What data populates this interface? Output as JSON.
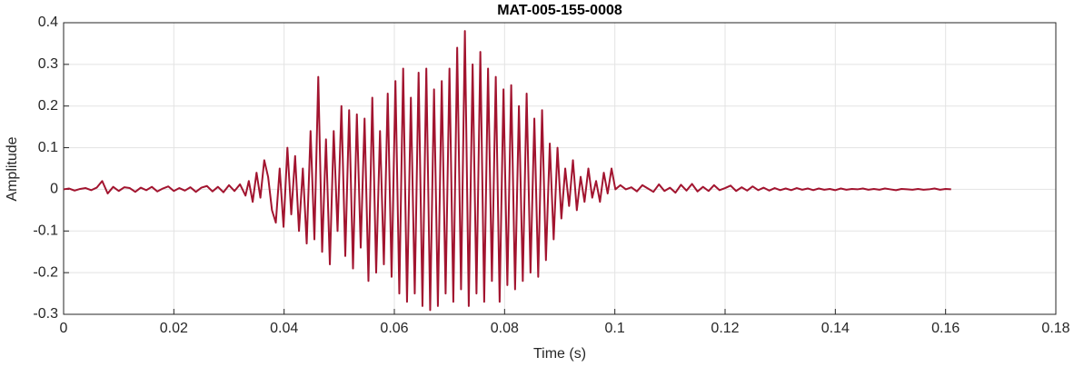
{
  "chart_data": {
    "type": "line",
    "title": "MAT-005-155-0008",
    "xlabel": "Time (s)",
    "ylabel": "Amplitude",
    "color": "#A2142F",
    "grid": true,
    "xlim": [
      0,
      0.18
    ],
    "xticks": [
      0,
      0.02,
      0.04,
      0.06,
      0.08,
      0.1,
      0.12,
      0.14,
      0.16,
      0.18
    ],
    "ylim": [
      -0.3,
      0.4
    ],
    "yticks": [
      -0.3,
      -0.2,
      -0.1,
      0,
      0.1,
      0.2,
      0.3,
      0.4
    ],
    "x": [
      0,
      0.001,
      0.002,
      0.003,
      0.004,
      0.005,
      0.006,
      0.007,
      0.008,
      0.009,
      0.01,
      0.011,
      0.012,
      0.013,
      0.014,
      0.015,
      0.016,
      0.017,
      0.018,
      0.019,
      0.02,
      0.021,
      0.022,
      0.023,
      0.024,
      0.025,
      0.026,
      0.027,
      0.028,
      0.029,
      0.03,
      0.031,
      0.032,
      0.033,
      0.0336,
      0.0343,
      0.035,
      0.0357,
      0.0364,
      0.0371,
      0.0378,
      0.0385,
      0.0392,
      0.0399,
      0.0406,
      0.0413,
      0.042,
      0.0427,
      0.0434,
      0.0441,
      0.0448,
      0.0455,
      0.0462,
      0.0469,
      0.0476,
      0.0483,
      0.049,
      0.0497,
      0.0504,
      0.0511,
      0.0518,
      0.0525,
      0.0532,
      0.0539,
      0.0546,
      0.0553,
      0.056,
      0.0567,
      0.0574,
      0.0581,
      0.0588,
      0.0595,
      0.0602,
      0.0609,
      0.0616,
      0.0623,
      0.063,
      0.0637,
      0.0644,
      0.0651,
      0.0658,
      0.0665,
      0.0672,
      0.0679,
      0.0686,
      0.0693,
      0.07,
      0.0707,
      0.0714,
      0.0721,
      0.0728,
      0.0735,
      0.0742,
      0.0749,
      0.0756,
      0.0763,
      0.077,
      0.0777,
      0.0784,
      0.0791,
      0.0798,
      0.0805,
      0.0812,
      0.0819,
      0.0826,
      0.0833,
      0.084,
      0.0847,
      0.0854,
      0.0861,
      0.0868,
      0.0875,
      0.0882,
      0.0889,
      0.0896,
      0.0903,
      0.091,
      0.0917,
      0.0924,
      0.0931,
      0.0938,
      0.0945,
      0.0952,
      0.0959,
      0.0966,
      0.0973,
      0.098,
      0.0987,
      0.0994,
      0.1001,
      0.101,
      0.102,
      0.103,
      0.104,
      0.105,
      0.106,
      0.107,
      0.108,
      0.109,
      0.11,
      0.111,
      0.112,
      0.113,
      0.114,
      0.115,
      0.116,
      0.117,
      0.118,
      0.119,
      0.12,
      0.121,
      0.122,
      0.123,
      0.124,
      0.125,
      0.126,
      0.127,
      0.128,
      0.129,
      0.13,
      0.131,
      0.132,
      0.133,
      0.134,
      0.135,
      0.136,
      0.137,
      0.138,
      0.139,
      0.14,
      0.141,
      0.142,
      0.143,
      0.144,
      0.145,
      0.146,
      0.147,
      0.148,
      0.149,
      0.15,
      0.151,
      0.152,
      0.153,
      0.154,
      0.155,
      0.156,
      0.157,
      0.158,
      0.159,
      0.16,
      0.161
    ],
    "values": [
      0,
      0.002,
      -0.003,
      0.001,
      0.003,
      -0.002,
      0.004,
      0.02,
      -0.01,
      0.006,
      -0.004,
      0.005,
      0.003,
      -0.006,
      0.004,
      -0.002,
      0.006,
      -0.005,
      0.002,
      0.007,
      -0.004,
      0.003,
      -0.003,
      0.005,
      -0.006,
      0.004,
      0.008,
      -0.005,
      0.006,
      -0.007,
      0.01,
      -0.004,
      0.012,
      -0.015,
      0.02,
      -0.03,
      0.04,
      -0.02,
      0.07,
      0.03,
      -0.05,
      -0.08,
      0.05,
      -0.09,
      0.1,
      -0.06,
      0.08,
      -0.1,
      0.05,
      -0.13,
      0.14,
      -0.12,
      0.27,
      -0.15,
      0.12,
      -0.18,
      0.14,
      -0.1,
      0.2,
      -0.16,
      0.19,
      -0.19,
      0.18,
      -0.14,
      0.17,
      -0.22,
      0.22,
      -0.2,
      0.14,
      -0.18,
      0.23,
      -0.21,
      0.26,
      -0.25,
      0.29,
      -0.27,
      0.22,
      -0.25,
      0.28,
      -0.28,
      0.29,
      -0.29,
      0.24,
      -0.28,
      0.26,
      -0.25,
      0.29,
      -0.27,
      0.34,
      -0.24,
      0.38,
      -0.28,
      0.3,
      -0.25,
      0.33,
      -0.27,
      0.29,
      -0.22,
      0.27,
      -0.27,
      0.24,
      -0.23,
      0.25,
      -0.24,
      0.2,
      -0.22,
      0.23,
      -0.2,
      0.17,
      -0.21,
      0.19,
      -0.17,
      0.11,
      -0.12,
      0.1,
      -0.07,
      0.05,
      -0.04,
      0.07,
      -0.05,
      0.03,
      -0.03,
      0.05,
      -0.02,
      0.02,
      -0.03,
      0.04,
      -0.01,
      0.05,
      0,
      0.01,
      0,
      0.005,
      -0.005,
      0.01,
      0.002,
      -0.006,
      0.012,
      -0.004,
      0.004,
      -0.008,
      0.011,
      -0.003,
      0.013,
      -0.005,
      0.006,
      -0.004,
      0.01,
      -0.002,
      0.003,
      0.009,
      -0.004,
      0.005,
      -0.003,
      0.007,
      -0.002,
      0.004,
      -0.003,
      0.003,
      -0.002,
      0.002,
      -0.002,
      0.003,
      -0.001,
      0.002,
      -0.002,
      0.002,
      -0.001,
      0.001,
      -0.002,
      0.002,
      -0.001,
      0.001,
      0,
      0.002,
      -0.001,
      0.001,
      -0.001,
      0.002,
      0,
      -0.002,
      0.001,
      0,
      -0.001,
      0.001,
      -0.001,
      0,
      0.002,
      -0.001,
      0.001,
      0
    ]
  }
}
